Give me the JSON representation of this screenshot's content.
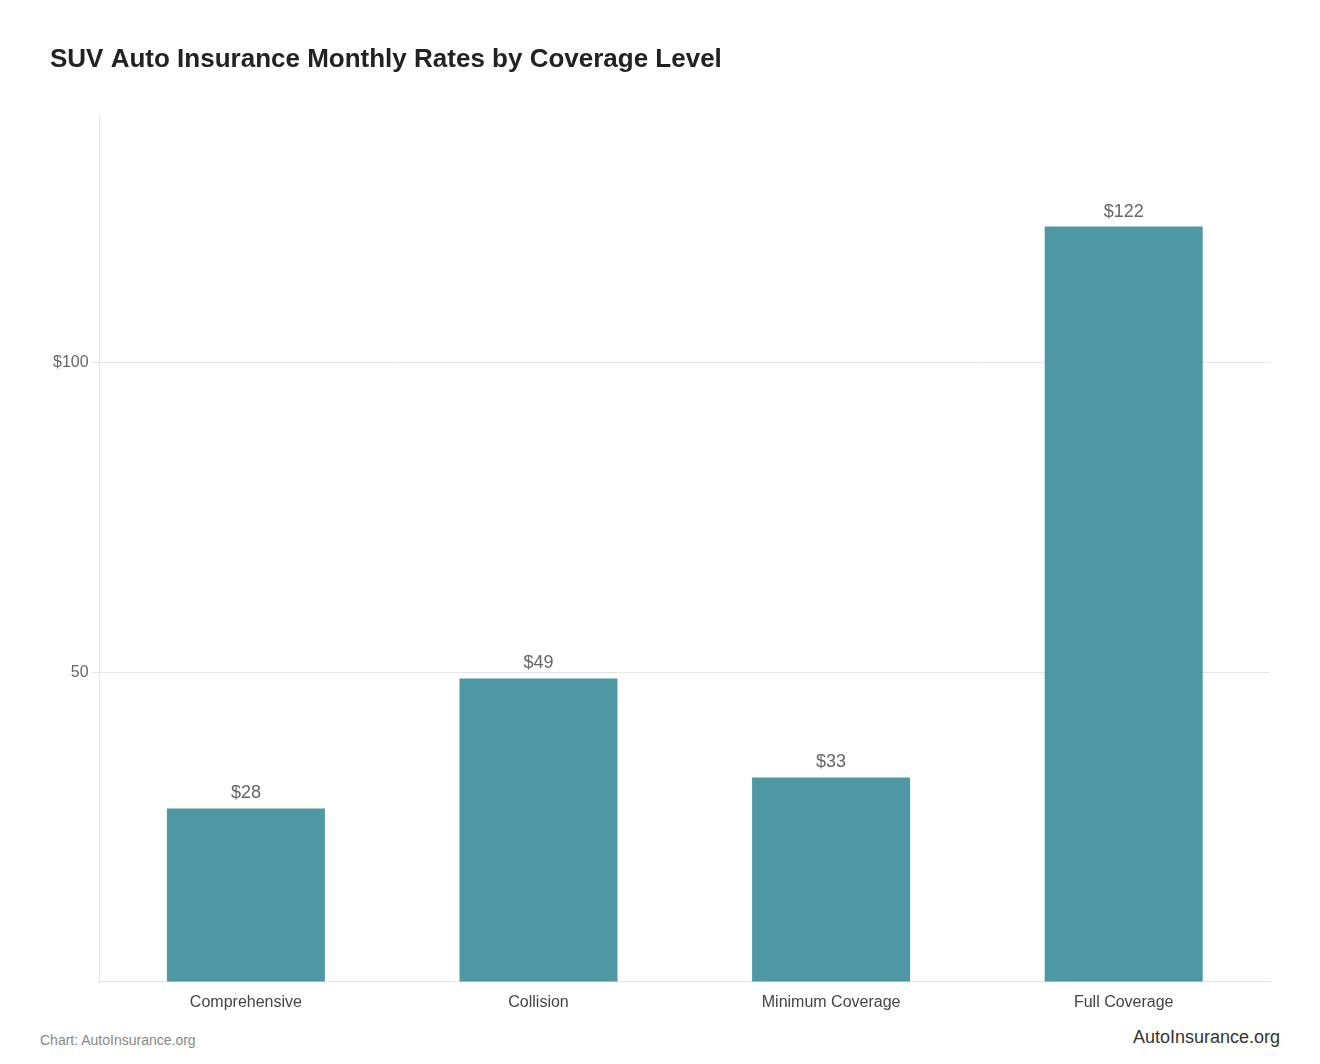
{
  "chart_data": {
    "type": "bar",
    "title": "SUV Auto Insurance Monthly Rates by Coverage Level",
    "categories": [
      "Comprehensive",
      "Collision",
      "Minimum Coverage",
      "Full Coverage"
    ],
    "values": [
      28,
      49,
      33,
      122
    ],
    "value_labels": [
      "$28",
      "$49",
      "$33",
      "$122"
    ],
    "data_labels": true,
    "color": "#4e98a3",
    "ylim": [
      0,
      140
    ],
    "yticks": [
      50,
      {
        "value": 100,
        "label": "$100"
      }
    ],
    "grid": true,
    "annotations": [
      "Chart: AutoInsurance.org",
      "AutoInsurance.org"
    ]
  }
}
